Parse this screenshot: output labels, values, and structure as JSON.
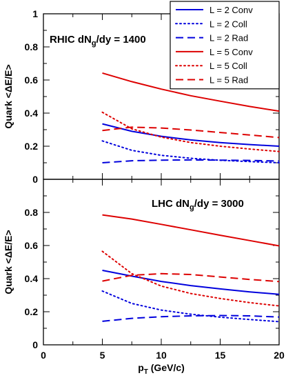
{
  "chart_data": [
    {
      "type": "line",
      "panel": "top",
      "annotation": "RHIC dN",
      "annotation_sub": "g",
      "annotation_tail": "/dy = 1400",
      "ylabel": "Quark <ΔE/E>",
      "xlabel": "",
      "xlim": [
        0,
        20
      ],
      "ylim": [
        0,
        1
      ],
      "yticks": [
        "0",
        "0.2",
        "0.4",
        "0.6",
        "0.8",
        "1"
      ],
      "xticks": [],
      "legend": "top-right",
      "series": [
        {
          "name": "L = 2 Conv",
          "color": "#0000dd",
          "dash": "solid",
          "x": [
            5,
            7.5,
            10,
            12.5,
            15,
            17.5,
            20
          ],
          "y": [
            0.335,
            0.29,
            0.26,
            0.238,
            0.222,
            0.21,
            0.2
          ]
        },
        {
          "name": "L = 2 Coll",
          "color": "#0000dd",
          "dash": "dot",
          "x": [
            5,
            7.5,
            10,
            12.5,
            15,
            17.5,
            20
          ],
          "y": [
            0.232,
            0.175,
            0.145,
            0.127,
            0.115,
            0.107,
            0.1
          ]
        },
        {
          "name": "L = 2 Rad",
          "color": "#0000dd",
          "dash": "dash",
          "x": [
            5,
            7.5,
            10,
            12.5,
            15,
            17.5,
            20
          ],
          "y": [
            0.1,
            0.112,
            0.116,
            0.117,
            0.116,
            0.114,
            0.11
          ]
        },
        {
          "name": "L = 5 Conv",
          "color": "#dd0000",
          "dash": "solid",
          "x": [
            5,
            7.5,
            10,
            12.5,
            15,
            17.5,
            20
          ],
          "y": [
            0.642,
            0.59,
            0.545,
            0.505,
            0.472,
            0.44,
            0.412
          ]
        },
        {
          "name": "L = 5 Coll",
          "color": "#dd0000",
          "dash": "dot",
          "x": [
            5,
            7.5,
            10,
            12.5,
            15,
            17.5,
            20
          ],
          "y": [
            0.405,
            0.305,
            0.255,
            0.222,
            0.2,
            0.183,
            0.168
          ]
        },
        {
          "name": "L = 5 Rad",
          "color": "#dd0000",
          "dash": "dash",
          "x": [
            5,
            7.5,
            10,
            12.5,
            15,
            17.5,
            20
          ],
          "y": [
            0.295,
            0.315,
            0.31,
            0.298,
            0.283,
            0.268,
            0.252
          ]
        }
      ]
    },
    {
      "type": "line",
      "panel": "bottom",
      "annotation": "LHC dN",
      "annotation_sub": "g",
      "annotation_tail": "/dy = 3000",
      "ylabel": "Quark <ΔE/E>",
      "xlabel": "p",
      "xlabel_sub": "T",
      "xlabel_tail": " (GeV/c)",
      "xlim": [
        0,
        20
      ],
      "ylim": [
        0,
        1
      ],
      "yticks": [
        "0",
        "0.2",
        "0.4",
        "0.6",
        "0.8"
      ],
      "xticks": [
        "0",
        "5",
        "10",
        "15",
        "20"
      ],
      "series": [
        {
          "name": "L = 2 Conv",
          "color": "#0000dd",
          "dash": "solid",
          "x": [
            5,
            7.5,
            10,
            12.5,
            15,
            17.5,
            20
          ],
          "y": [
            0.45,
            0.415,
            0.383,
            0.358,
            0.338,
            0.32,
            0.305
          ]
        },
        {
          "name": "L = 2 Coll",
          "color": "#0000dd",
          "dash": "dot",
          "x": [
            5,
            7.5,
            10,
            12.5,
            15,
            17.5,
            20
          ],
          "y": [
            0.325,
            0.25,
            0.21,
            0.185,
            0.167,
            0.153,
            0.14
          ]
        },
        {
          "name": "L = 2 Rad",
          "color": "#0000dd",
          "dash": "dash",
          "x": [
            5,
            7.5,
            10,
            12.5,
            15,
            17.5,
            20
          ],
          "y": [
            0.142,
            0.16,
            0.17,
            0.175,
            0.177,
            0.175,
            0.168
          ]
        },
        {
          "name": "L = 5 Conv",
          "color": "#dd0000",
          "dash": "solid",
          "x": [
            5,
            7.5,
            10,
            12.5,
            15,
            17.5,
            20
          ],
          "y": [
            0.785,
            0.76,
            0.728,
            0.695,
            0.662,
            0.63,
            0.598
          ]
        },
        {
          "name": "L = 5 Coll",
          "color": "#dd0000",
          "dash": "dot",
          "x": [
            5,
            7.5,
            10,
            12.5,
            15,
            17.5,
            20
          ],
          "y": [
            0.565,
            0.43,
            0.355,
            0.31,
            0.28,
            0.255,
            0.235
          ]
        },
        {
          "name": "L = 5 Rad",
          "color": "#dd0000",
          "dash": "dash",
          "x": [
            5,
            7.5,
            10,
            12.5,
            15,
            17.5,
            20
          ],
          "y": [
            0.385,
            0.42,
            0.43,
            0.425,
            0.41,
            0.395,
            0.382
          ]
        }
      ]
    }
  ]
}
